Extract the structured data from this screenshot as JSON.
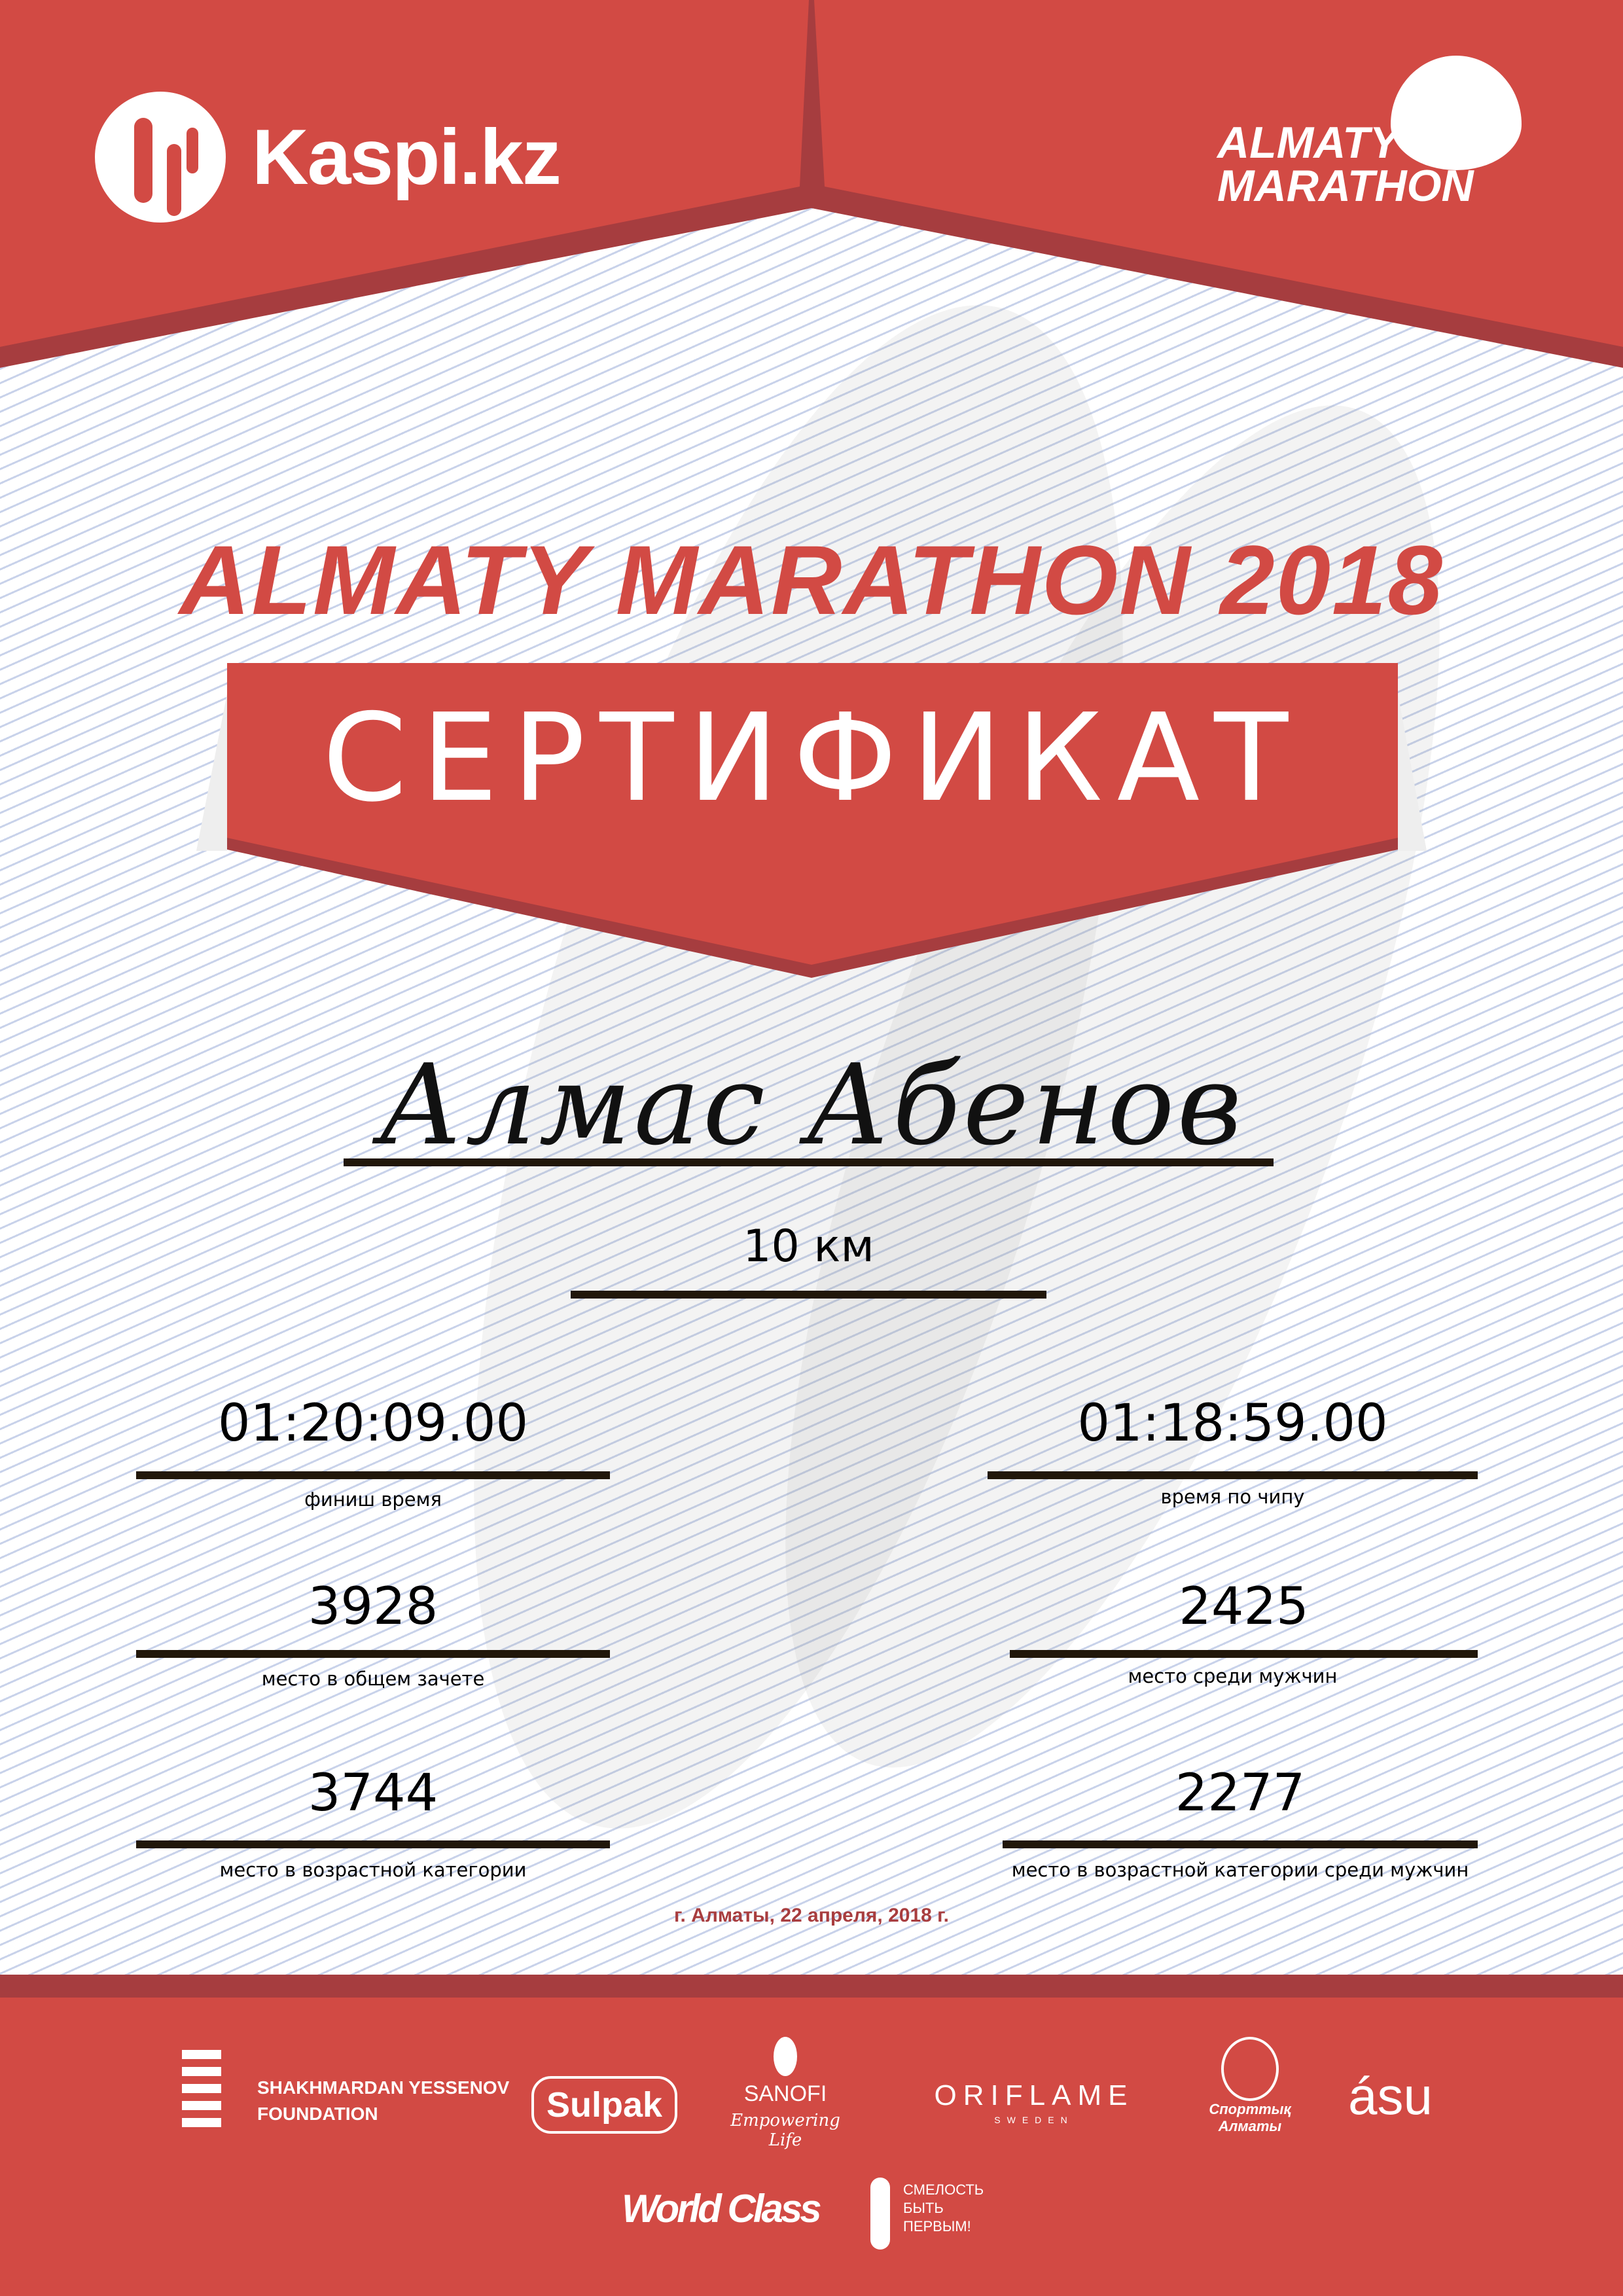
{
  "colors": {
    "brand_red": "#d24a44",
    "dark_red": "#a63d3f",
    "rule": "#21170a",
    "date": "#a83d3f"
  },
  "header": {
    "left_logo": "Kaspi.kz",
    "right_logo_line1": "ALMATY",
    "right_logo_line2": "MARATHON"
  },
  "title": "ALMATY MARATHON 2018",
  "banner": "СЕРТИФИКАТ",
  "participant": {
    "name": "Алмас Абенов",
    "distance": "10 км"
  },
  "results": {
    "left": [
      {
        "value": "01:20:09.00",
        "label": "финиш время"
      },
      {
        "value": "3928",
        "label": "место в общем зачете"
      },
      {
        "value": "3744",
        "label": "место в возрастной категории"
      }
    ],
    "right": [
      {
        "value": "01:18:59.00",
        "label": "время по чипу"
      },
      {
        "value": "2425",
        "label": "место среди мужчин"
      },
      {
        "value": "2277",
        "label": "место в возрастной категории среди мужчин"
      }
    ]
  },
  "date": "г. Алматы, 22 апреля, 2018 г.",
  "sponsors": {
    "yessenov_1": "SHAKHMARDAN YESSENOV",
    "yessenov_2": "FOUNDATION",
    "sulpak": "Sulpak",
    "sanofi": "SANOFI",
    "sanofi_tag": "Empowering Life",
    "oriflame": "ORIFLAME",
    "oriflame_sub": "SWEDEN",
    "sport_1": "Спорттық",
    "sport_2": "Алматы",
    "asu": "ásu",
    "worldclass": "World Class",
    "fund_1": "СМЕЛОСТЬ",
    "fund_2": "БЫТЬ",
    "fund_3": "ПЕРВЫМ!"
  }
}
